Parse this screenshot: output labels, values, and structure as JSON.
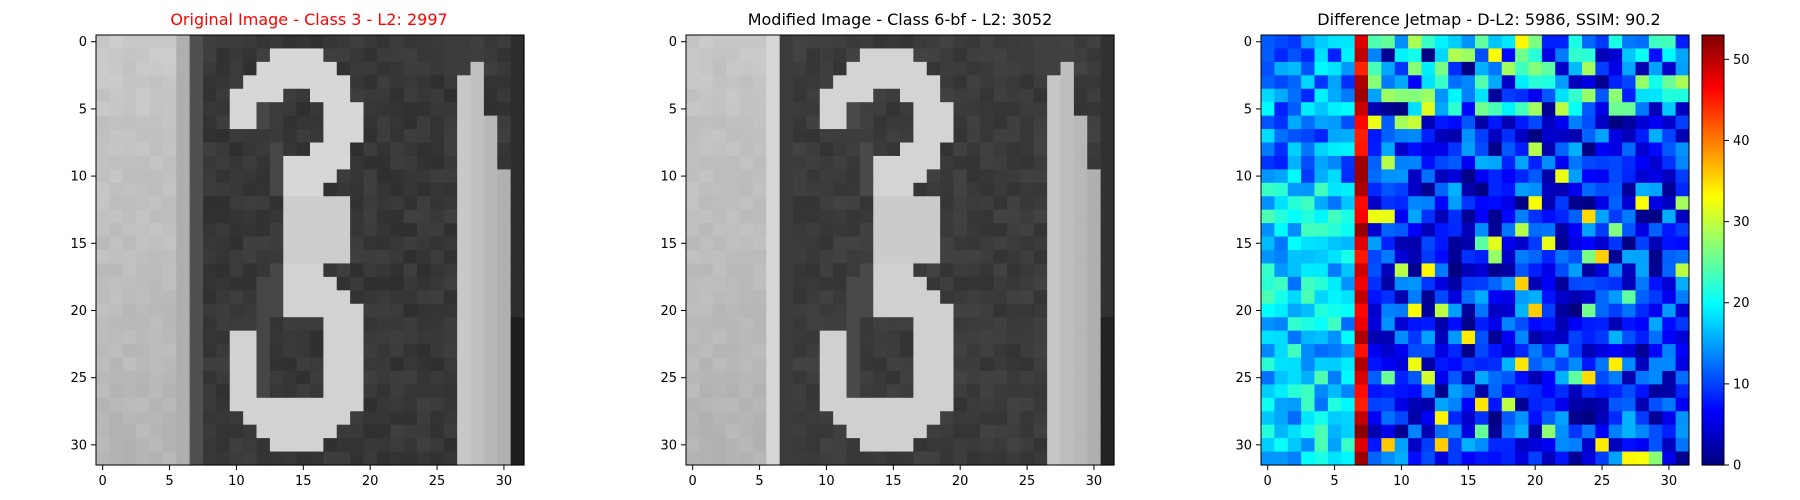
{
  "panels": [
    {
      "title": "Original Image - Class 3 - L2: 2997",
      "title_color": "#ff0000",
      "variant": "original"
    },
    {
      "title": "Modified Image - Class 6-bf - L2: 3052",
      "title_color": "#000000",
      "variant": "modified"
    },
    {
      "title": "Difference Jetmap - D-L2: 5986, SSIM: 90.2",
      "title_color": "#000000",
      "variant": "difference"
    }
  ],
  "chart_data": [
    {
      "type": "heatmap",
      "title": "Original Image - Class 3 - L2: 2997",
      "colormap": "gray",
      "rows": 32,
      "cols": 32,
      "xlim": [
        -0.5,
        31.5
      ],
      "ylim": [
        31.5,
        -0.5
      ],
      "xticks": [
        0,
        5,
        10,
        15,
        20,
        25,
        30
      ],
      "yticks": [
        0,
        5,
        10,
        15,
        20,
        25,
        30
      ]
    },
    {
      "type": "heatmap",
      "title": "Modified Image - Class 6-bf - L2: 3052",
      "colormap": "gray",
      "rows": 32,
      "cols": 32,
      "xlim": [
        -0.5,
        31.5
      ],
      "ylim": [
        31.5,
        -0.5
      ],
      "xticks": [
        0,
        5,
        10,
        15,
        20,
        25,
        30
      ],
      "yticks": [
        0,
        5,
        10,
        15,
        20,
        25,
        30
      ]
    },
    {
      "type": "heatmap",
      "title": "Difference Jetmap - D-L2: 5986, SSIM: 90.2",
      "colormap": "jet",
      "rows": 32,
      "cols": 32,
      "xlim": [
        -0.5,
        31.5
      ],
      "ylim": [
        31.5,
        -0.5
      ],
      "xticks": [
        0,
        5,
        10,
        15,
        20,
        25,
        30
      ],
      "yticks": [
        0,
        5,
        10,
        15,
        20,
        25,
        30
      ],
      "colorbar": {
        "range": [
          0,
          53
        ],
        "ticks": [
          0,
          10,
          20,
          30,
          40,
          50
        ]
      }
    }
  ]
}
